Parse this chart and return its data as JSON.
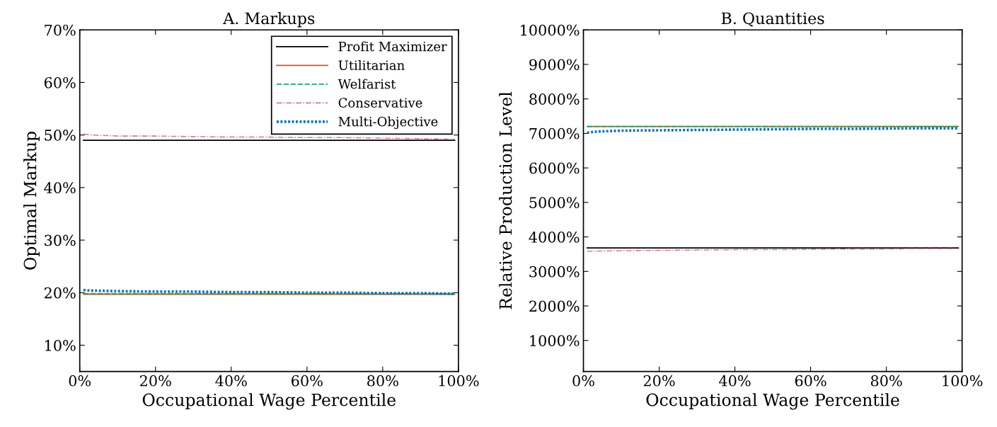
{
  "chart_data": [
    {
      "type": "line",
      "title": "A. Markups",
      "xlabel": "Occupational Wage Percentile",
      "ylabel": "Optimal Markup",
      "legend": "top right",
      "grid": false,
      "marker": "none",
      "xlim": [
        0,
        100
      ],
      "ylim": [
        5,
        70
      ],
      "xticks": [
        {
          "value": 0,
          "label": "0%"
        },
        {
          "value": 20,
          "label": "20%"
        },
        {
          "value": 40,
          "label": "40%"
        },
        {
          "value": 60,
          "label": "60%"
        },
        {
          "value": 80,
          "label": "80%"
        },
        {
          "value": 100,
          "label": "100%"
        }
      ],
      "yticks": [
        {
          "value": 10,
          "label": "10%"
        },
        {
          "value": 20,
          "label": "20%"
        },
        {
          "value": 30,
          "label": "30%"
        },
        {
          "value": 40,
          "label": "40%"
        },
        {
          "value": 50,
          "label": "50%"
        },
        {
          "value": 60,
          "label": "60%"
        },
        {
          "value": 70,
          "label": "70%"
        }
      ],
      "x": [
        1,
        3,
        10,
        20,
        30,
        40,
        50,
        60,
        70,
        80,
        90,
        99
      ],
      "series": [
        {
          "name": "Profit Maximizer",
          "color": "#000000",
          "line_style": "solid",
          "values": [
            49.0,
            49.0,
            49.0,
            49.0,
            49.0,
            49.0,
            49.0,
            49.0,
            49.0,
            49.0,
            49.0,
            49.0
          ]
        },
        {
          "name": "Utilitarian",
          "color": "#d95319",
          "line_style": "solid",
          "values": [
            19.7,
            19.7,
            19.7,
            19.7,
            19.7,
            19.7,
            19.7,
            19.7,
            19.7,
            19.7,
            19.7,
            19.7
          ]
        },
        {
          "name": "Welfarist",
          "color": "#1aa37a",
          "line_style": "dashed",
          "values": [
            19.8,
            19.8,
            19.8,
            19.8,
            19.8,
            19.8,
            19.8,
            19.8,
            19.8,
            19.8,
            19.8,
            19.8
          ]
        },
        {
          "name": "Conservative",
          "color": "#cc79a7",
          "line_style": "dashdot",
          "values": [
            50.2,
            50.0,
            49.8,
            49.8,
            49.7,
            49.6,
            49.6,
            49.5,
            49.5,
            49.4,
            49.3,
            49.2
          ]
        },
        {
          "name": "Multi-Objective",
          "color": "#0072bd",
          "line_style": "dotted",
          "values": [
            20.5,
            20.4,
            20.3,
            20.2,
            20.2,
            20.1,
            20.1,
            20.0,
            20.0,
            19.9,
            19.9,
            19.8
          ]
        }
      ]
    },
    {
      "type": "line",
      "title": "B. Quantities",
      "xlabel": "Occupational Wage Percentile",
      "ylabel": "Relative Production Level",
      "legend": false,
      "grid": false,
      "marker": "none",
      "xlim": [
        0,
        100
      ],
      "ylim": [
        100,
        10000
      ],
      "xticks": [
        {
          "value": 0,
          "label": "0%"
        },
        {
          "value": 20,
          "label": "20%"
        },
        {
          "value": 40,
          "label": "40%"
        },
        {
          "value": 60,
          "label": "60%"
        },
        {
          "value": 80,
          "label": "80%"
        },
        {
          "value": 100,
          "label": "100%"
        }
      ],
      "yticks": [
        {
          "value": 1000,
          "label": "1000%"
        },
        {
          "value": 2000,
          "label": "2000%"
        },
        {
          "value": 3000,
          "label": "3000%"
        },
        {
          "value": 4000,
          "label": "4000%"
        },
        {
          "value": 5000,
          "label": "5000%"
        },
        {
          "value": 6000,
          "label": "6000%"
        },
        {
          "value": 7000,
          "label": "7000%"
        },
        {
          "value": 8000,
          "label": "8000%"
        },
        {
          "value": 9000,
          "label": "9000%"
        },
        {
          "value": 10000,
          "label": "10000%"
        }
      ],
      "x": [
        1,
        3,
        10,
        20,
        30,
        40,
        50,
        60,
        70,
        80,
        90,
        99
      ],
      "series": [
        {
          "color": "#000000",
          "line_style": "solid",
          "values": [
            3680,
            3680,
            3680,
            3680,
            3680,
            3680,
            3680,
            3680,
            3680,
            3680,
            3680,
            3680
          ]
        },
        {
          "color": "#d95319",
          "line_style": "solid",
          "values": [
            7200,
            7200,
            7200,
            7200,
            7200,
            7200,
            7200,
            7200,
            7200,
            7200,
            7200,
            7200
          ]
        },
        {
          "color": "#1aa37a",
          "line_style": "dashed",
          "values": [
            7200,
            7200,
            7200,
            7200,
            7200,
            7200,
            7200,
            7200,
            7200,
            7200,
            7200,
            7200
          ]
        },
        {
          "color": "#cc79a7",
          "line_style": "dashdot",
          "values": [
            3580,
            3590,
            3600,
            3610,
            3620,
            3630,
            3630,
            3640,
            3650,
            3650,
            3660,
            3660
          ]
        },
        {
          "color": "#0072bd",
          "line_style": "dotted",
          "values": [
            7020,
            7050,
            7080,
            7090,
            7100,
            7110,
            7120,
            7130,
            7130,
            7140,
            7150,
            7150
          ]
        }
      ]
    }
  ]
}
